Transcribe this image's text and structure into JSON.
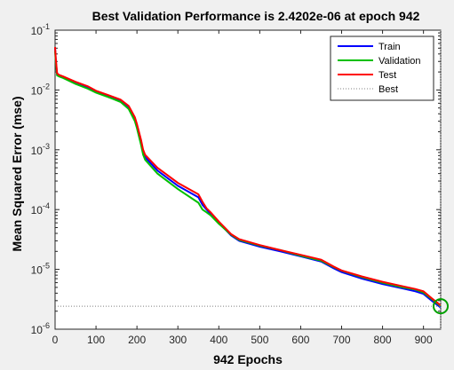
{
  "chart_data": {
    "type": "line",
    "title": "Best Validation Performance is 2.4202e-06 at epoch 942",
    "xlabel": "942 Epochs",
    "ylabel": "Mean Squared Error  (mse)",
    "xlim": [
      0,
      942
    ],
    "ylim": [
      1e-06,
      0.1
    ],
    "yscale": "log",
    "x_ticks": [
      0,
      100,
      200,
      300,
      400,
      500,
      600,
      700,
      800,
      900
    ],
    "y_ticks": [
      {
        "value": 1e-06,
        "base": "10",
        "exp": "-6"
      },
      {
        "value": 1e-05,
        "base": "10",
        "exp": "-5"
      },
      {
        "value": 0.0001,
        "base": "10",
        "exp": "-4"
      },
      {
        "value": 0.001,
        "base": "10",
        "exp": "-3"
      },
      {
        "value": 0.01,
        "base": "10",
        "exp": "-2"
      },
      {
        "value": 0.1,
        "base": "10",
        "exp": "-1"
      }
    ],
    "grid": false,
    "legend_position": "top-right",
    "best": {
      "epoch": 942,
      "value": 2.4202e-06
    },
    "series": [
      {
        "name": "Train",
        "color": "#0000ff",
        "x": [
          0,
          2,
          5,
          10,
          20,
          50,
          80,
          100,
          130,
          160,
          180,
          195,
          200,
          210,
          215,
          220,
          250,
          300,
          350,
          360,
          370,
          380,
          400,
          430,
          450,
          500,
          550,
          600,
          650,
          680,
          700,
          750,
          800,
          850,
          880,
          900,
          920,
          942
        ],
        "y": [
          0.05,
          0.03,
          0.018,
          0.017,
          0.016,
          0.013,
          0.011,
          0.0093,
          0.0079,
          0.0066,
          0.0051,
          0.0033,
          0.0025,
          0.0013,
          0.0009,
          0.00075,
          0.00045,
          0.00025,
          0.00016,
          0.00012,
          0.0001,
          8.5e-05,
          6e-05,
          3.7e-05,
          3e-05,
          2.4e-05,
          2e-05,
          1.65e-05,
          1.35e-05,
          1.05e-05,
          9e-06,
          7e-06,
          5.7e-06,
          4.8e-06,
          4.3e-06,
          3.9e-06,
          3e-06,
          2.3e-06
        ]
      },
      {
        "name": "Validation",
        "color": "#00c000",
        "x": [
          0,
          2,
          5,
          10,
          20,
          50,
          80,
          100,
          130,
          160,
          180,
          195,
          200,
          210,
          215,
          220,
          250,
          300,
          350,
          360,
          370,
          380,
          400,
          430,
          450,
          500,
          550,
          600,
          650,
          680,
          700,
          750,
          800,
          850,
          880,
          900,
          920,
          942
        ],
        "y": [
          0.045,
          0.028,
          0.0175,
          0.0168,
          0.0158,
          0.0126,
          0.0105,
          0.009,
          0.0076,
          0.0063,
          0.0048,
          0.003,
          0.0023,
          0.0012,
          0.00083,
          0.00068,
          0.0004,
          0.00022,
          0.00013,
          0.0001,
          9e-05,
          8e-05,
          5.8e-05,
          3.8e-05,
          3.1e-05,
          2.5e-05,
          2.1e-05,
          1.7e-05,
          1.4e-05,
          1.1e-05,
          9.5e-06,
          7.4e-06,
          6e-06,
          5e-06,
          4.6e-06,
          4.1e-06,
          3.2e-06,
          2.42e-06
        ]
      },
      {
        "name": "Test",
        "color": "#ff0000",
        "x": [
          0,
          2,
          5,
          10,
          20,
          50,
          80,
          100,
          130,
          160,
          180,
          195,
          200,
          210,
          215,
          220,
          250,
          300,
          350,
          360,
          370,
          380,
          400,
          430,
          450,
          500,
          550,
          600,
          650,
          680,
          700,
          750,
          800,
          850,
          880,
          900,
          920,
          942
        ],
        "y": [
          0.052,
          0.032,
          0.019,
          0.0178,
          0.0168,
          0.0137,
          0.0115,
          0.0097,
          0.0082,
          0.0069,
          0.0054,
          0.0035,
          0.0027,
          0.00145,
          0.001,
          0.00082,
          0.0005,
          0.00028,
          0.00018,
          0.000135,
          0.000105,
          9e-05,
          6.3e-05,
          3.9e-05,
          3.2e-05,
          2.55e-05,
          2.1e-05,
          1.75e-05,
          1.45e-05,
          1.12e-05,
          9.6e-06,
          7.6e-06,
          6.2e-06,
          5.2e-06,
          4.7e-06,
          4.3e-06,
          3.3e-06,
          2.5e-06
        ]
      },
      {
        "name": "Best",
        "color": "#808080",
        "style": "dotted",
        "x": [
          0,
          942
        ],
        "y": [
          2.4202e-06,
          2.4202e-06
        ]
      }
    ]
  }
}
